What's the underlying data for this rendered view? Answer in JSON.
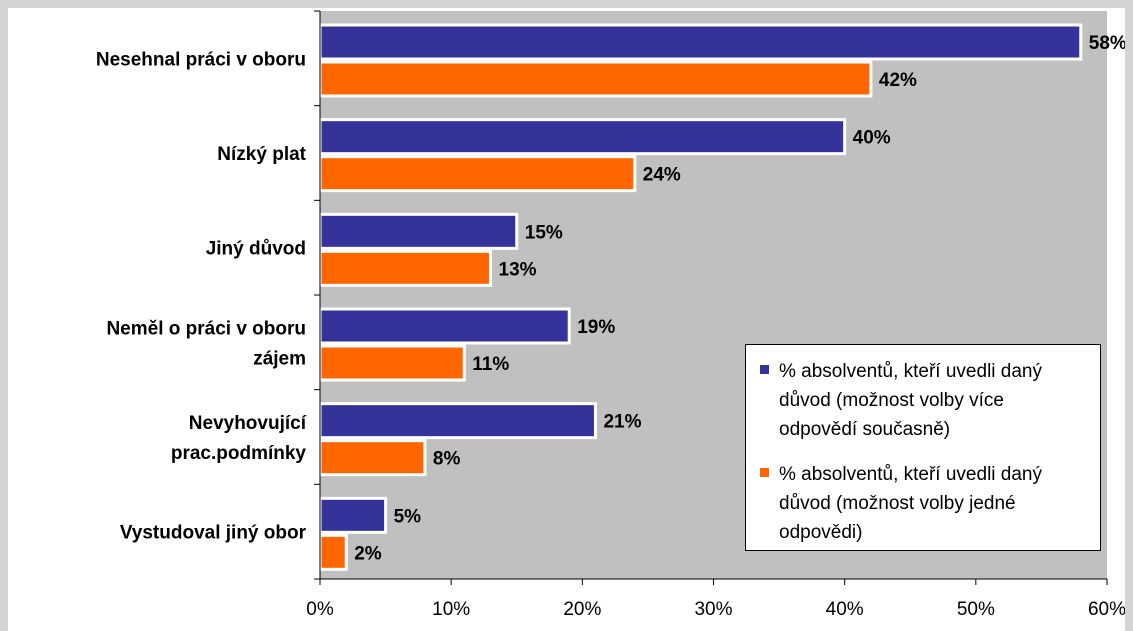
{
  "colors": {
    "series1": "#333399",
    "series2": "#ff6600",
    "plot_bg": "#c0c0c0",
    "bar_border": "#ffffff"
  },
  "chart_data": {
    "type": "bar",
    "orientation": "horizontal",
    "categories": [
      "Nesehnal práci v oboru",
      "Nízký plat",
      "Jiný důvod",
      "Neměl o práci v oboru zájem",
      "Nevyhovující prac.podmínky",
      "Vystudoval jiný obor"
    ],
    "category_lines": [
      [
        "Nesehnal práci v oboru"
      ],
      [
        "Nízký plat"
      ],
      [
        "Jiný důvod"
      ],
      [
        "Neměl o práci v oboru",
        "zájem"
      ],
      [
        "Nevyhovující",
        "prac.podmínky"
      ],
      [
        "Vystudoval jiný obor"
      ]
    ],
    "series": [
      {
        "name": "% absolventů, kteří uvedli daný důvod (možnost volby více odpovědí současně)",
        "values": [
          58,
          40,
          15,
          19,
          21,
          5
        ],
        "labels": [
          "58%",
          "40%",
          "15%",
          "19%",
          "21%",
          "5%"
        ]
      },
      {
        "name": "% absolventů, kteří uvedli daný důvod (možnost volby jedné odpovědi)",
        "values": [
          42,
          24,
          13,
          11,
          8,
          2
        ],
        "labels": [
          "42%",
          "24%",
          "13%",
          "11%",
          "8%",
          "2%"
        ]
      }
    ],
    "xlim": [
      0,
      60
    ],
    "xticks": [
      0,
      10,
      20,
      30,
      40,
      50,
      60
    ],
    "xtick_labels": [
      "0%",
      "10%",
      "20%",
      "30%",
      "40%",
      "50%",
      "60%"
    ],
    "title": "",
    "xlabel": "",
    "ylabel": "",
    "grid": false,
    "legend_position": "bottom-right"
  },
  "legend": {
    "entries": [
      {
        "lines": [
          "% absolventů, kteří uvedli daný",
          "důvod (možnost volby více",
          "odpovědí současně)"
        ]
      },
      {
        "lines": [
          "% absolventů, kteří uvedli daný",
          "důvod (možnost volby jedné",
          "odpovědi)"
        ]
      }
    ]
  }
}
